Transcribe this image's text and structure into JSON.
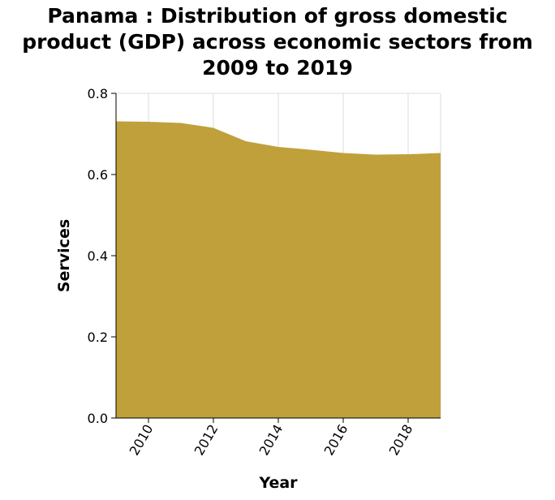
{
  "chart_data": {
    "type": "area",
    "title_lines": [
      "Panama : Distribution of gross domestic",
      "product (GDP) across economic sectors from",
      "2009 to 2019"
    ],
    "xlabel": "Year",
    "ylabel": "Services",
    "xlim": [
      2009,
      2019
    ],
    "ylim": [
      0,
      0.8
    ],
    "x_ticks": [
      2010,
      2012,
      2014,
      2016,
      2018
    ],
    "y_ticks": [
      "0.0",
      "0.2",
      "0.4",
      "0.6",
      "0.8"
    ],
    "grid": true,
    "series": [
      {
        "x": [
          2009,
          2010,
          2011,
          2012,
          2013,
          2014,
          2015,
          2016,
          2017,
          2018,
          2019
        ],
        "values": [
          0.731,
          0.73,
          0.727,
          0.715,
          0.682,
          0.668,
          0.661,
          0.653,
          0.649,
          0.65,
          0.653
        ]
      }
    ],
    "colors": {
      "area": "#c0a03b",
      "grid": "#dddddd"
    }
  }
}
